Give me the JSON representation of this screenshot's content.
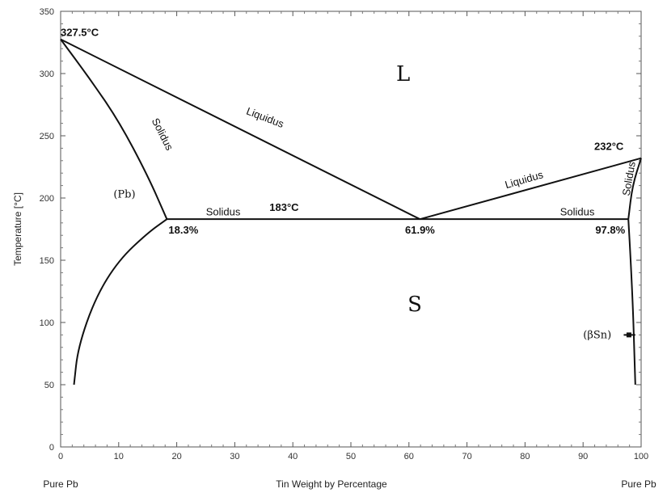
{
  "chart_data": {
    "type": "line",
    "xlabel": "Tin Weight by Percentage",
    "ylabel": "Temperature [°C]",
    "xlim": [
      0,
      100
    ],
    "ylim": [
      0,
      350
    ],
    "xticks": [
      0,
      10,
      20,
      30,
      40,
      50,
      60,
      70,
      80,
      90,
      100
    ],
    "yticks": [
      0,
      50,
      100,
      150,
      200,
      250,
      300,
      350
    ],
    "x_end_labels": {
      "left": "Pure Pb",
      "right": "Pure Pb"
    },
    "grid": false,
    "series": [
      {
        "name": "Liquidus",
        "x": [
          0,
          61.9
        ],
        "y": [
          327.5,
          183
        ]
      },
      {
        "name": "Liquidus",
        "x": [
          61.9,
          100
        ],
        "y": [
          183,
          232
        ]
      },
      {
        "name": "Solidus",
        "x": [
          0,
          5,
          10,
          15,
          18.3
        ],
        "y": [
          327.5,
          296,
          262,
          218,
          183
        ]
      },
      {
        "name": "Solidus",
        "x": [
          18.3,
          97.8
        ],
        "y": [
          183,
          183
        ]
      },
      {
        "name": "Solidus",
        "x": [
          97.8,
          98.5,
          100
        ],
        "y": [
          183,
          210,
          232
        ]
      },
      {
        "x": [
          18.3,
          15,
          10,
          6,
          3,
          2.3
        ],
        "y": [
          183,
          172,
          150,
          120,
          80,
          50
        ]
      },
      {
        "x": [
          97.8,
          98.2,
          98.6,
          98.8,
          99
        ],
        "y": [
          183,
          150,
          110,
          80,
          50
        ]
      }
    ],
    "annotations": [
      {
        "text": "327.5°C",
        "x": 0,
        "y": 327.5
      },
      {
        "text": "232°C",
        "x": 100,
        "y": 232
      },
      {
        "text": "183°C",
        "x": 38.5,
        "y": 183
      },
      {
        "text": "18.3%",
        "x": 18.3,
        "y": 183
      },
      {
        "text": "61.9%",
        "x": 61.9,
        "y": 183
      },
      {
        "text": "97.8%",
        "x": 97.8,
        "y": 183
      },
      {
        "text": "L",
        "x": 59,
        "y": 300
      },
      {
        "text": "S",
        "x": 61,
        "y": 115
      },
      {
        "text": "(Pb)",
        "x": 11,
        "y": 203
      },
      {
        "text": "(βSn)",
        "x": 93,
        "y": 90
      },
      {
        "text": "Liquidus",
        "x": 35,
        "y": 262
      },
      {
        "text": "Liquidus",
        "x": 80,
        "y": 212
      },
      {
        "text": "Solidus",
        "x": 17,
        "y": 250
      },
      {
        "text": "Solidus",
        "x": 28,
        "y": 186
      },
      {
        "text": "Solidus",
        "x": 89,
        "y": 186
      },
      {
        "text": "Solidus",
        "x": 98.5,
        "y": 215
      }
    ]
  }
}
